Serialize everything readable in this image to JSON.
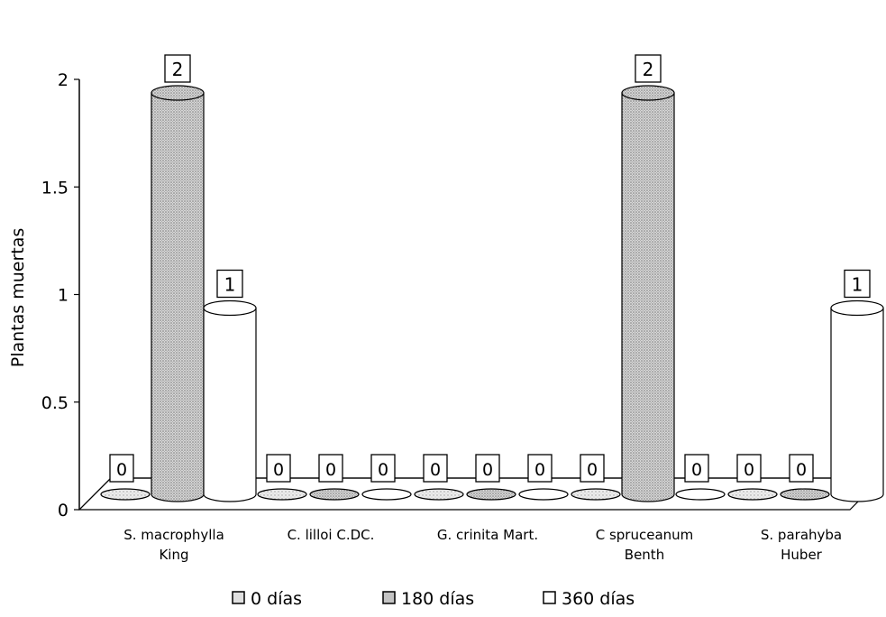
{
  "chart_data": {
    "type": "bar",
    "title": "",
    "xlabel": "",
    "ylabel": "Plantas muertas",
    "ylim": [
      0,
      2
    ],
    "yticks": [
      "0",
      "0.5",
      "1",
      "1.5",
      "2"
    ],
    "categories": [
      [
        "S. macrophylla",
        "King"
      ],
      [
        "C. lilloi C.DC."
      ],
      [
        "G. crinita Mart."
      ],
      [
        "C spruceanum",
        "Benth"
      ],
      [
        "S. parahyba",
        "Huber"
      ]
    ],
    "series": [
      {
        "name": "0 días",
        "values": [
          0,
          0,
          0,
          0,
          0
        ],
        "labels": [
          "0",
          "0",
          "0",
          "0",
          "0"
        ]
      },
      {
        "name": "180 días",
        "values": [
          2,
          0,
          0,
          2,
          0
        ],
        "labels": [
          "2",
          "0",
          "0",
          "2",
          "0"
        ]
      },
      {
        "name": "360 días",
        "values": [
          1,
          0,
          0,
          0,
          1
        ],
        "labels": [
          "1",
          "0",
          "0",
          "0",
          "1"
        ]
      }
    ],
    "legend_position": "bottom",
    "grid": false,
    "colors": {
      "0 días": "#d9d9d9",
      "180 días": "#bdbdbd",
      "360 días": "#ffffff"
    }
  }
}
